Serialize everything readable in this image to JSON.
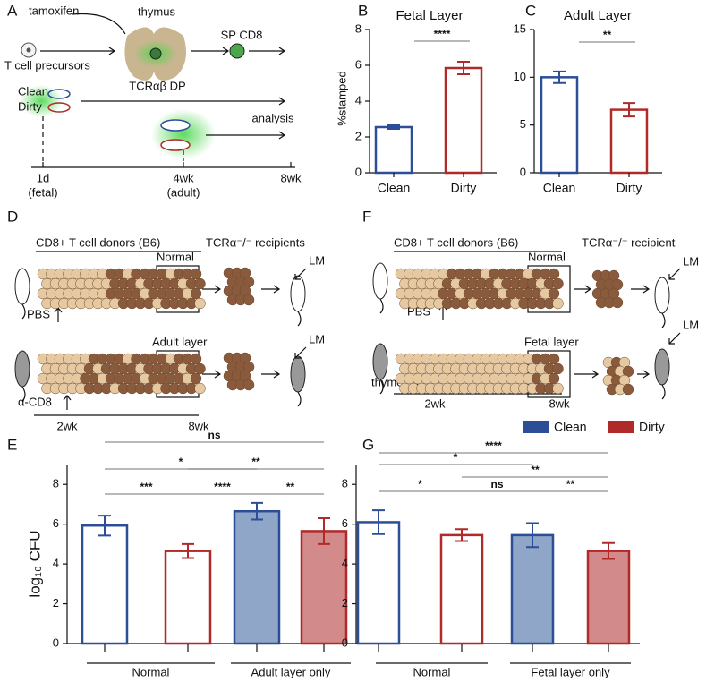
{
  "panel_labels": [
    "A",
    "B",
    "C",
    "D",
    "E",
    "F",
    "G"
  ],
  "diagram_a": {
    "tamoxifen": "tamoxifen",
    "thymus": "thymus",
    "precursors": "T cell precursors",
    "dp": "TCRαβ DP",
    "sp": "SP CD8",
    "clean": "Clean",
    "dirty": "Dirty",
    "analysis": "analysis",
    "timeline": [
      "1d",
      "(fetal)",
      "4wk",
      "(adult)",
      "8wk"
    ]
  },
  "diagram_d": {
    "donors": "CD8+ T cell donors (B6)",
    "recipients": "TCRα⁻/⁻ recipients",
    "normal": "Normal",
    "layer": "Adult layer",
    "top_treatment": "PBS",
    "bottom_treatment": "α-CD8",
    "start": "2wk",
    "end": "8wk",
    "infection": [
      "LM",
      "LM"
    ]
  },
  "diagram_f": {
    "donors": "CD8+ T cell donors (B6)",
    "recipients": "TCRα⁻/⁻ recipient",
    "normal": "Normal",
    "layer": "Fetal layer",
    "top_treatment": "PBS",
    "bottom_treatment": "thymectomy",
    "start": "2wk",
    "end": "8wk",
    "infection": [
      "LM",
      "LM"
    ]
  },
  "chart_data": [
    {
      "type": "bar",
      "title": "Fetal Layer",
      "y_label": "%stamped",
      "categories": [
        "Clean",
        "Dirty"
      ],
      "values": [
        2.55,
        5.85
      ],
      "errors": [
        0.1,
        0.35
      ],
      "colors": [
        "#2b4e96",
        "#b02a2a"
      ],
      "ylim": [
        0,
        8
      ],
      "yticks": [
        0,
        2,
        4,
        6,
        8
      ],
      "significance": [
        "****"
      ]
    },
    {
      "type": "bar",
      "title": "Adult Layer",
      "categories": [
        "Clean",
        "Dirty"
      ],
      "values": [
        10.0,
        6.6
      ],
      "errors": [
        0.6,
        0.7
      ],
      "colors": [
        "#2b4e96",
        "#b02a2a"
      ],
      "ylim": [
        0,
        15
      ],
      "yticks": [
        0,
        5,
        10,
        15
      ],
      "significance": [
        "**"
      ]
    },
    {
      "type": "grouped_bar",
      "y_label": "log₁₀ CFU",
      "categories": [
        "Normal",
        "Adult layer only"
      ],
      "series": [
        {
          "name": "Clean",
          "color": "#2b4e96",
          "fills": [
            "#ffffff",
            "#8fa6c8"
          ],
          "values": [
            5.93,
            6.65
          ],
          "errors": [
            0.5,
            0.42
          ]
        },
        {
          "name": "Dirty",
          "color": "#b02a2a",
          "fills": [
            "#ffffff",
            "#d28a8a"
          ],
          "values": [
            4.65,
            5.65
          ],
          "errors": [
            0.35,
            0.65
          ]
        }
      ],
      "ylim": [
        0,
        9
      ],
      "yticks": [
        0,
        2,
        4,
        6,
        8
      ],
      "significance": [
        "ns",
        "*",
        "**",
        "***",
        "****",
        "**"
      ]
    },
    {
      "type": "grouped_bar",
      "categories": [
        "Normal",
        "Fetal layer only"
      ],
      "series": [
        {
          "name": "Clean",
          "color": "#2b4e96",
          "fills": [
            "#ffffff",
            "#8fa6c8"
          ],
          "values": [
            6.1,
            5.45
          ],
          "errors": [
            0.6,
            0.6
          ]
        },
        {
          "name": "Dirty",
          "color": "#b02a2a",
          "fills": [
            "#ffffff",
            "#d28a8a"
          ],
          "values": [
            5.45,
            4.65
          ],
          "errors": [
            0.3,
            0.4
          ]
        }
      ],
      "ylim": [
        0,
        9
      ],
      "yticks": [
        0,
        2,
        4,
        6,
        8
      ],
      "significance": [
        "****",
        "*",
        "**",
        "*",
        "ns",
        "**"
      ],
      "legend": "top-right"
    }
  ]
}
